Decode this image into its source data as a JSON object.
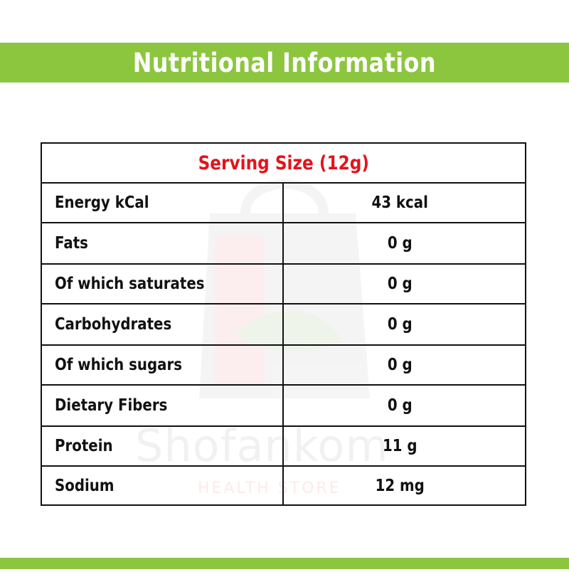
{
  "banner": {
    "title": "Nutritional Information"
  },
  "table": {
    "header": "Serving Size (12g)",
    "rows": [
      {
        "name": "Energy kCal",
        "value": "43 kcal"
      },
      {
        "name": "Fats",
        "value": "0 g"
      },
      {
        "name": "Of which saturates",
        "value": "0 g"
      },
      {
        "name": "Carbohydrates",
        "value": "0 g"
      },
      {
        "name": "Of which sugars",
        "value": "0 g"
      },
      {
        "name": "Dietary Fibers",
        "value": "0 g"
      },
      {
        "name": "Protein",
        "value": "11 g"
      },
      {
        "name": "Sodium",
        "value": "12 mg"
      }
    ]
  },
  "watermark": {
    "brand": "Shofankom",
    "tagline": "HEALTH STORE"
  },
  "colors": {
    "accent": "#8cc63f",
    "header_text": "#e3131b",
    "border": "#111111"
  }
}
